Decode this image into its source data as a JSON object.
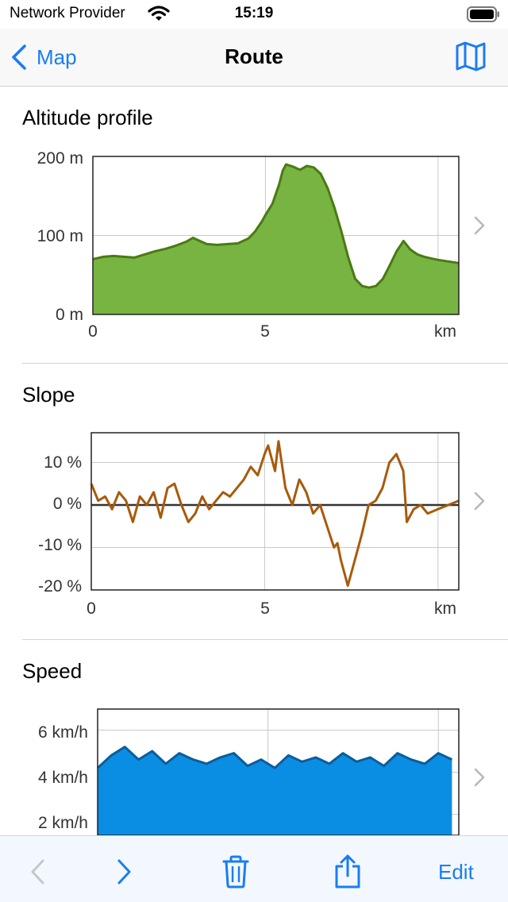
{
  "status": {
    "carrier": "Network Provider",
    "time": "15:19"
  },
  "nav": {
    "back_label": "Map",
    "title": "Route"
  },
  "sections": {
    "altitude": {
      "title": "Altitude profile",
      "y_ticks": [
        "200 m",
        "100 m",
        "0 m"
      ],
      "x_ticks": [
        "0",
        "5",
        "km"
      ]
    },
    "slope": {
      "title": "Slope",
      "y_ticks": [
        "10 %",
        "0 %",
        "-10 %",
        "-20 %"
      ],
      "x_ticks": [
        "0",
        "5",
        "km"
      ]
    },
    "speed": {
      "title": "Speed",
      "y_ticks": [
        "6 km/h",
        "4 km/h",
        "2 km/h"
      ]
    }
  },
  "toolbar": {
    "edit_label": "Edit"
  },
  "colors": {
    "accent": "#1a7cf5",
    "altitude_fill": "#77b441",
    "altitude_line": "#4a7a12",
    "slope_line": "#a85a0c",
    "speed_fill": "#0a8ee3",
    "speed_line": "#0b5d9c"
  },
  "chart_data": [
    {
      "type": "area",
      "title": "Altitude profile",
      "xlabel": "km",
      "ylabel": "",
      "xlim": [
        0,
        10.6
      ],
      "ylim": [
        0,
        200
      ],
      "x": [
        0,
        0.3,
        0.6,
        0.9,
        1.2,
        1.5,
        1.8,
        2.1,
        2.4,
        2.7,
        2.9,
        3.1,
        3.3,
        3.6,
        3.9,
        4.2,
        4.5,
        4.7,
        4.9,
        5.0,
        5.2,
        5.4,
        5.5,
        5.6,
        5.8,
        6.0,
        6.2,
        6.4,
        6.6,
        6.8,
        7.0,
        7.2,
        7.4,
        7.6,
        7.8,
        8.0,
        8.2,
        8.4,
        8.6,
        8.8,
        9.0,
        9.2,
        9.4,
        9.6,
        9.8,
        10.0,
        10.3,
        10.6
      ],
      "series": [
        {
          "values": [
            70,
            73,
            74,
            73,
            72,
            76,
            80,
            83,
            87,
            92,
            97,
            93,
            89,
            88,
            89,
            90,
            96,
            105,
            118,
            126,
            140,
            165,
            182,
            190,
            187,
            183,
            188,
            186,
            178,
            160,
            135,
            105,
            72,
            45,
            36,
            34,
            36,
            45,
            62,
            80,
            93,
            82,
            76,
            73,
            71,
            69,
            67,
            65
          ]
        }
      ]
    },
    {
      "type": "line",
      "title": "Slope",
      "xlabel": "km",
      "ylabel": "",
      "xlim": [
        0,
        10.6
      ],
      "ylim": [
        -20,
        17
      ],
      "x": [
        0,
        0.2,
        0.4,
        0.6,
        0.8,
        1.0,
        1.2,
        1.4,
        1.6,
        1.8,
        2.0,
        2.2,
        2.4,
        2.6,
        2.8,
        3.0,
        3.2,
        3.4,
        3.6,
        3.8,
        4.0,
        4.2,
        4.4,
        4.6,
        4.8,
        5.0,
        5.1,
        5.3,
        5.4,
        5.6,
        5.8,
        6.0,
        6.2,
        6.4,
        6.6,
        6.8,
        7.0,
        7.1,
        7.2,
        7.4,
        7.6,
        7.8,
        8.0,
        8.2,
        8.4,
        8.6,
        8.8,
        9.0,
        9.1,
        9.3,
        9.5,
        9.7,
        10.0,
        10.3,
        10.6
      ],
      "series": [
        {
          "values": [
            5,
            1,
            2,
            -1,
            3,
            1,
            -4,
            2,
            0,
            3,
            -3,
            4,
            5,
            0,
            -4,
            -2,
            2,
            -1,
            1,
            3,
            2,
            4,
            6,
            9,
            7,
            12,
            14,
            8,
            15,
            4,
            0,
            6,
            3,
            -2,
            0,
            -5,
            -10,
            -9,
            -13,
            -19,
            -13,
            -7,
            0,
            1,
            4,
            10,
            12,
            8,
            -4,
            -1,
            0,
            -2,
            -1,
            0,
            1
          ]
        }
      ]
    },
    {
      "type": "area",
      "title": "Speed",
      "xlabel": "",
      "ylabel": "",
      "xlim": [
        0,
        10.6
      ],
      "ylim": [
        1,
        7
      ],
      "x": [
        0,
        0.4,
        0.8,
        1.2,
        1.6,
        2.0,
        2.4,
        2.8,
        3.2,
        3.6,
        4.0,
        4.4,
        4.8,
        5.2,
        5.6,
        6.0,
        6.4,
        6.8,
        7.2,
        7.6,
        8.0,
        8.4,
        8.8,
        9.2,
        9.6,
        10.0,
        10.4
      ],
      "series": [
        {
          "values": [
            4.2,
            4.8,
            5.2,
            4.6,
            5.0,
            4.4,
            4.9,
            4.6,
            4.4,
            4.7,
            4.9,
            4.3,
            4.6,
            4.2,
            4.8,
            4.5,
            4.7,
            4.4,
            4.9,
            4.5,
            4.7,
            4.3,
            4.9,
            4.6,
            4.4,
            4.9,
            4.6
          ]
        }
      ]
    }
  ]
}
